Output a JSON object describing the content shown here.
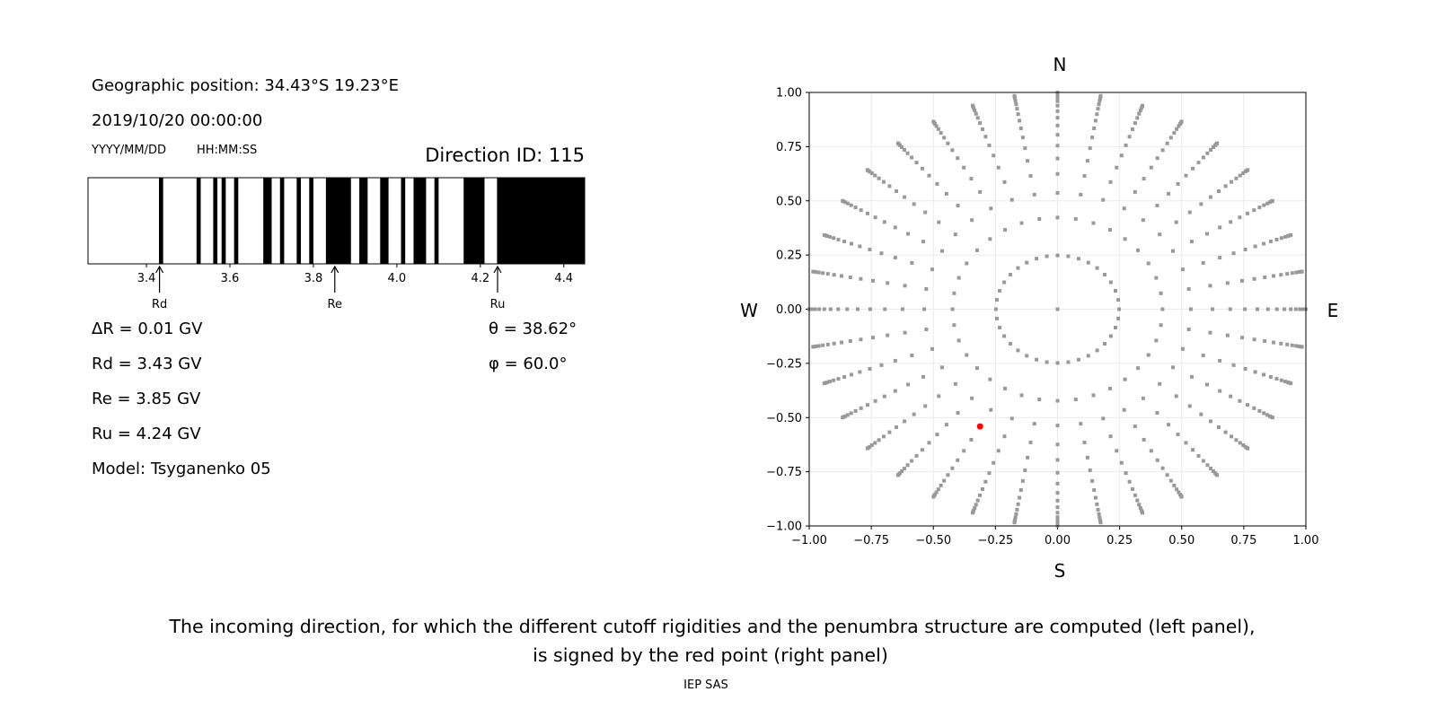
{
  "left_panel": {
    "geo_position": "Geographic position: 34.43°S 19.23°E",
    "datetime": "2019/10/20 00:00:00",
    "date_format": "YYYY/MM/DD",
    "time_format": "HH:MM:SS",
    "direction_id": "Direction ID: 115",
    "delta_r": "ΔR = 0.01 GV",
    "rd": "Rd = 3.43 GV",
    "re": "Re = 3.85 GV",
    "ru": "Ru = 4.24 GV",
    "model": "Model: Tsyganenko 05",
    "theta": "θ = 38.62°",
    "phi": "φ = 60.0°"
  },
  "chart_data": [
    {
      "type": "bar",
      "description_kind": "penumbra strip",
      "xlim": [
        3.26,
        4.45
      ],
      "xticks": [
        "3.4",
        "3.6",
        "3.8",
        "4.0",
        "4.2",
        "4.4"
      ],
      "xtick_values": [
        3.4,
        3.6,
        3.8,
        4.0,
        4.2,
        4.4
      ],
      "colors": {
        "forbidden": "#000000",
        "allowed": "#ffffff"
      },
      "black_intervals": [
        [
          3.43,
          3.44
        ],
        [
          3.52,
          3.53
        ],
        [
          3.56,
          3.57
        ],
        [
          3.58,
          3.59
        ],
        [
          3.61,
          3.62
        ],
        [
          3.68,
          3.7
        ],
        [
          3.72,
          3.73
        ],
        [
          3.76,
          3.77
        ],
        [
          3.79,
          3.8
        ],
        [
          3.83,
          3.89
        ],
        [
          3.91,
          3.93
        ],
        [
          3.96,
          3.98
        ],
        [
          4.01,
          4.02
        ],
        [
          4.04,
          4.07
        ],
        [
          4.09,
          4.1
        ],
        [
          4.16,
          4.21
        ],
        [
          4.24,
          4.45
        ]
      ],
      "annotations": [
        {
          "label": "Rd",
          "value": 3.43
        },
        {
          "label": "Re",
          "value": 3.85
        },
        {
          "label": "Ru",
          "value": 4.24
        }
      ]
    },
    {
      "type": "scatter",
      "xlim": [
        -1.0,
        1.0
      ],
      "ylim": [
        -1.0,
        1.0
      ],
      "xticks": [
        "−1.00",
        "−0.75",
        "−0.50",
        "−0.25",
        "0.00",
        "0.25",
        "0.50",
        "0.75",
        "1.00"
      ],
      "yticks": [
        "−1.00",
        "−0.75",
        "−0.50",
        "−0.25",
        "0.00",
        "0.25",
        "0.50",
        "0.75",
        "1.00"
      ],
      "tick_values": [
        -1.0,
        -0.75,
        -0.5,
        -0.25,
        0,
        0.25,
        0.5,
        0.75,
        1.0
      ],
      "grid": true,
      "compass": {
        "north": "N",
        "south": "S",
        "west": "W",
        "east": "E"
      },
      "directions_grid": {
        "azimuth_step_deg": 10,
        "cos_zenith_values": [
          1.0,
          0.96875,
          0.90625,
          0.84375,
          0.78125,
          0.71875,
          0.65625,
          0.59375,
          0.53125,
          0.46875,
          0.40625,
          0.34375,
          0.28125,
          0.21875,
          0.15625,
          0.09375,
          0.03125
        ],
        "color": "#999999"
      },
      "selected_point": {
        "x": -0.312,
        "y": -0.541,
        "color": "#ff0000"
      }
    }
  ],
  "caption": {
    "line1": "The incoming direction, for which the different cutoff rigidities and the penumbra structure are computed (left panel),",
    "line2": "is signed by the red point (right panel)",
    "credit": "IEP SAS"
  }
}
